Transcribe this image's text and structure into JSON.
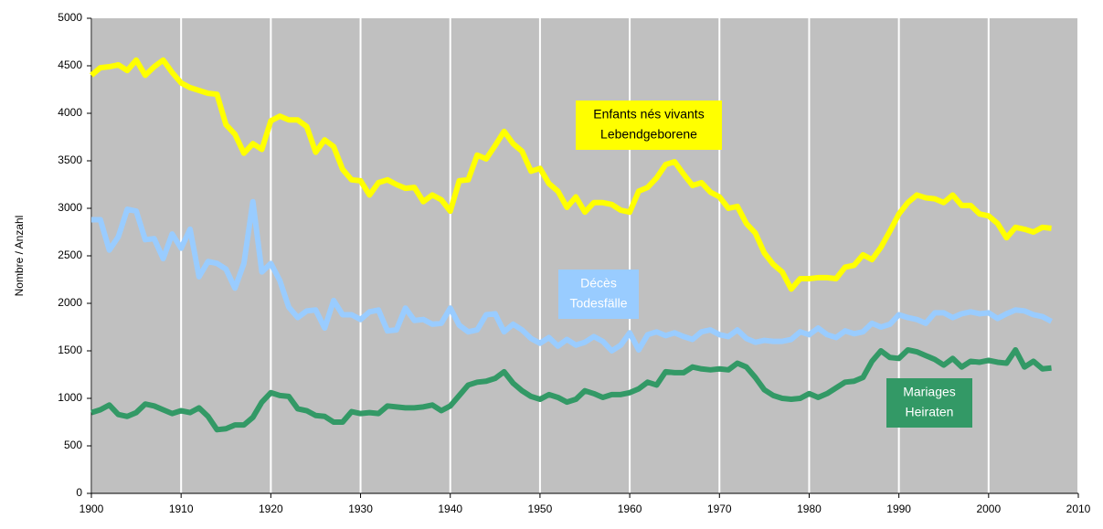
{
  "chart_data": {
    "type": "line",
    "y_label": "Nombre / Anzahl",
    "x": [
      1900,
      1901,
      1902,
      1903,
      1904,
      1905,
      1906,
      1907,
      1908,
      1909,
      1910,
      1911,
      1912,
      1913,
      1914,
      1915,
      1916,
      1917,
      1918,
      1919,
      1920,
      1921,
      1922,
      1923,
      1924,
      1925,
      1926,
      1927,
      1928,
      1929,
      1930,
      1931,
      1932,
      1933,
      1934,
      1935,
      1936,
      1937,
      1938,
      1939,
      1940,
      1941,
      1942,
      1943,
      1944,
      1945,
      1946,
      1947,
      1948,
      1949,
      1950,
      1951,
      1952,
      1953,
      1954,
      1955,
      1956,
      1957,
      1958,
      1959,
      1960,
      1961,
      1962,
      1963,
      1964,
      1965,
      1966,
      1967,
      1968,
      1969,
      1970,
      1971,
      1972,
      1973,
      1974,
      1975,
      1976,
      1977,
      1978,
      1979,
      1980,
      1981,
      1982,
      1983,
      1984,
      1985,
      1986,
      1987,
      1988,
      1989,
      1990,
      1991,
      1992,
      1993,
      1994,
      1995,
      1996,
      1997,
      1998,
      1999,
      2000,
      2001,
      2002,
      2003,
      2004,
      2005,
      2006,
      2007
    ],
    "series": [
      {
        "name": [
          "Enfants nés vivants",
          "Lebendgeborene"
        ],
        "color": "#ffff00",
        "values": [
          4400,
          4480,
          4490,
          4510,
          4450,
          4560,
          4400,
          4490,
          4560,
          4430,
          4320,
          4270,
          4240,
          4210,
          4200,
          3880,
          3780,
          3580,
          3680,
          3620,
          3920,
          3970,
          3930,
          3930,
          3860,
          3590,
          3720,
          3650,
          3410,
          3300,
          3290,
          3140,
          3270,
          3300,
          3250,
          3210,
          3220,
          3070,
          3140,
          3090,
          2970,
          3290,
          3300,
          3560,
          3520,
          3660,
          3810,
          3680,
          3600,
          3390,
          3420,
          3260,
          3180,
          3010,
          3120,
          2960,
          3060,
          3060,
          3040,
          2980,
          2960,
          3180,
          3220,
          3320,
          3460,
          3490,
          3360,
          3240,
          3270,
          3170,
          3120,
          3000,
          3020,
          2840,
          2740,
          2530,
          2410,
          2330,
          2150,
          2260,
          2260,
          2270,
          2270,
          2260,
          2380,
          2400,
          2510,
          2460,
          2590,
          2760,
          2940,
          3060,
          3140,
          3110,
          3100,
          3060,
          3140,
          3030,
          3030,
          2940,
          2920,
          2840,
          2690,
          2800,
          2780,
          2750,
          2800,
          2790
        ]
      },
      {
        "name": [
          "Décès",
          "Todesfälle"
        ],
        "color": "#99ccff",
        "values": [
          2880,
          2880,
          2560,
          2700,
          2990,
          2970,
          2670,
          2680,
          2470,
          2730,
          2580,
          2780,
          2280,
          2440,
          2420,
          2360,
          2160,
          2420,
          3070,
          2330,
          2420,
          2240,
          1960,
          1850,
          1920,
          1930,
          1740,
          2030,
          1880,
          1880,
          1830,
          1910,
          1930,
          1710,
          1720,
          1950,
          1820,
          1830,
          1780,
          1790,
          1950,
          1770,
          1700,
          1720,
          1880,
          1890,
          1700,
          1780,
          1720,
          1630,
          1580,
          1640,
          1550,
          1620,
          1560,
          1590,
          1650,
          1600,
          1500,
          1560,
          1690,
          1510,
          1670,
          1700,
          1660,
          1690,
          1650,
          1620,
          1700,
          1720,
          1670,
          1650,
          1720,
          1630,
          1590,
          1610,
          1600,
          1600,
          1620,
          1700,
          1670,
          1740,
          1670,
          1640,
          1710,
          1680,
          1700,
          1790,
          1750,
          1780,
          1880,
          1850,
          1830,
          1790,
          1900,
          1900,
          1850,
          1890,
          1910,
          1890,
          1900,
          1840,
          1890,
          1930,
          1920,
          1880,
          1860,
          1810
        ]
      },
      {
        "name": [
          "Mariages",
          "Heiraten"
        ],
        "color": "#339966",
        "values": [
          850,
          880,
          930,
          830,
          810,
          850,
          940,
          920,
          880,
          840,
          870,
          850,
          900,
          810,
          670,
          680,
          720,
          720,
          800,
          960,
          1060,
          1030,
          1020,
          890,
          870,
          820,
          810,
          750,
          750,
          860,
          840,
          850,
          840,
          920,
          910,
          900,
          900,
          910,
          930,
          870,
          920,
          1030,
          1140,
          1170,
          1180,
          1210,
          1280,
          1160,
          1080,
          1020,
          990,
          1040,
          1010,
          960,
          990,
          1080,
          1050,
          1010,
          1040,
          1040,
          1060,
          1100,
          1170,
          1140,
          1280,
          1270,
          1270,
          1330,
          1310,
          1300,
          1310,
          1300,
          1370,
          1330,
          1220,
          1090,
          1030,
          1000,
          990,
          1000,
          1050,
          1010,
          1050,
          1110,
          1170,
          1180,
          1220,
          1390,
          1500,
          1430,
          1420,
          1510,
          1490,
          1450,
          1410,
          1350,
          1420,
          1330,
          1390,
          1380,
          1400,
          1380,
          1370,
          1510,
          1330,
          1390,
          1310,
          1320
        ]
      }
    ],
    "xlim": [
      1900,
      2010
    ],
    "xticks": [
      1900,
      1910,
      1920,
      1930,
      1940,
      1950,
      1960,
      1970,
      1980,
      1990,
      2000,
      2010
    ],
    "ylim": [
      0,
      5000
    ],
    "yticks": [
      0,
      500,
      1000,
      1500,
      2000,
      2500,
      3000,
      3500,
      4000,
      4500,
      5000
    ],
    "grid": true,
    "background": "#c0c0c0"
  }
}
